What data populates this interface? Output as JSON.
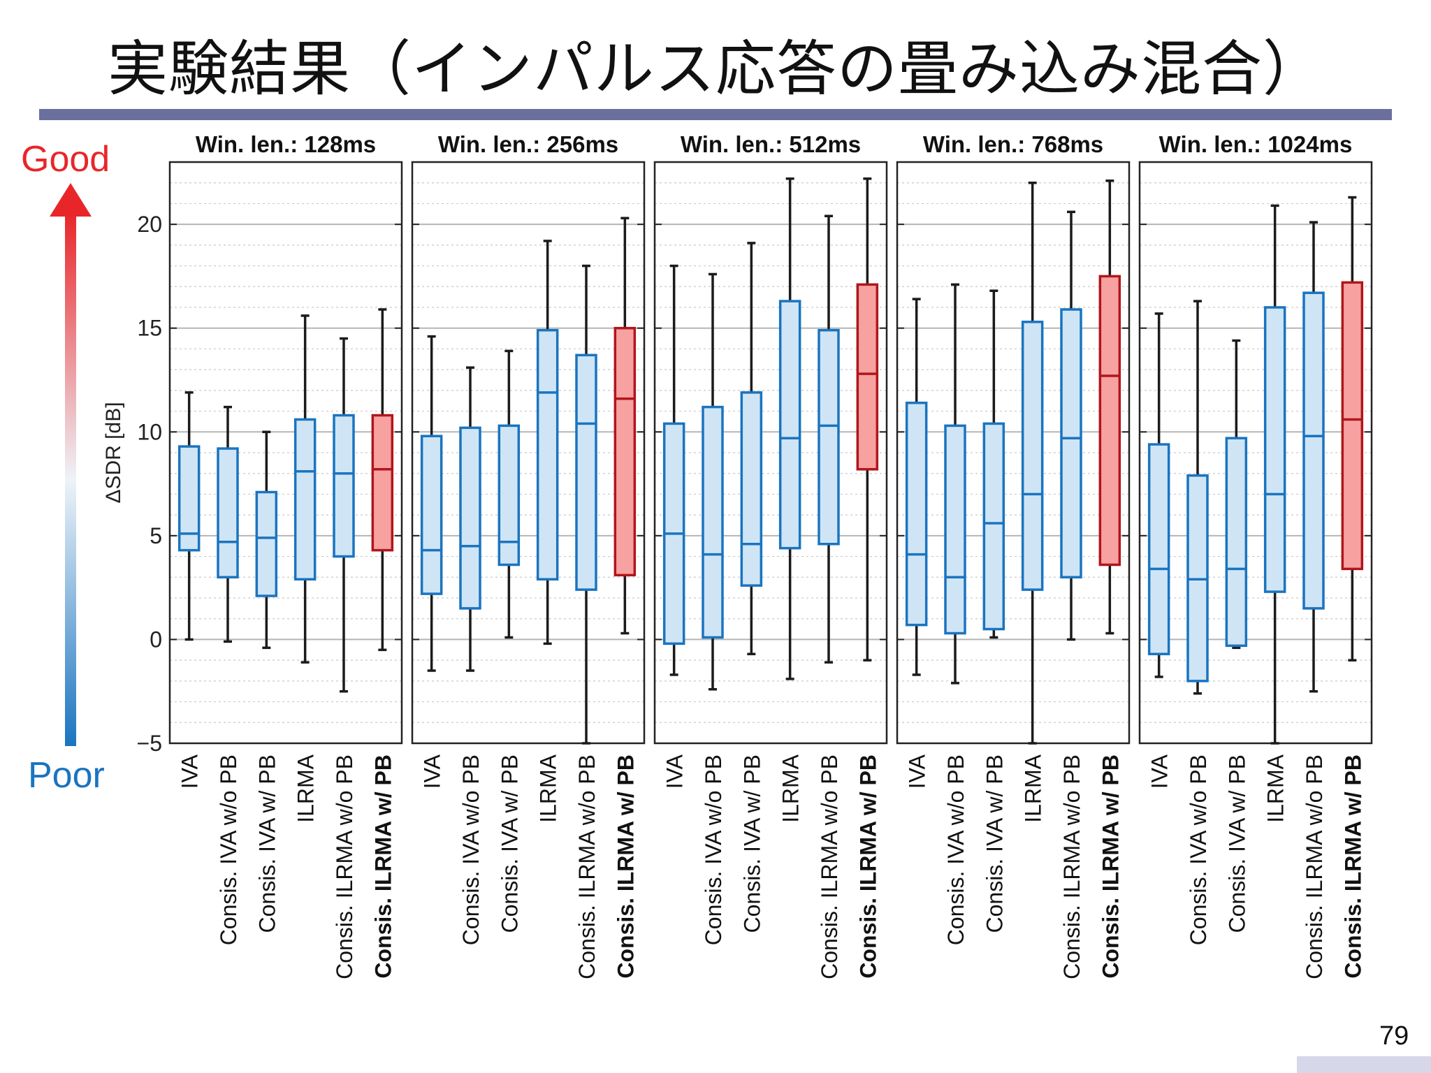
{
  "slide": {
    "title": "実験結果（インパルス応答の畳み込み混合）",
    "good_label": "Good",
    "poor_label": "Poor",
    "page_number": "79"
  },
  "colors": {
    "title_rule": "#6b6f9e",
    "baseline_box_fill": "#cfe5f5",
    "baseline_box_edge": "#1a74c0",
    "proposed_box_fill": "#f7a1a1",
    "proposed_box_edge": "#b0161b",
    "good": "#e8262a",
    "poor": "#1a74c0"
  },
  "chart_data": {
    "type": "box",
    "ylabel": "ΔSDR [dB]",
    "ylim": [
      -5,
      23
    ],
    "yticks": [
      -5,
      0,
      5,
      10,
      15,
      20
    ],
    "grid": true,
    "categories": [
      "IVA",
      "Consis. IVA w/o PB",
      "Consis. IVA w/ PB",
      "ILRMA",
      "Consis. ILRMA w/o PB",
      "Consis. ILRMA w/ PB"
    ],
    "highlight_category": "Consis. ILRMA w/ PB",
    "panels": [
      {
        "title": "Win. len.: 128ms",
        "boxes": [
          {
            "min": 0.0,
            "q1": 4.3,
            "median": 5.1,
            "q3": 9.3,
            "max": 11.9
          },
          {
            "min": -0.1,
            "q1": 3.0,
            "median": 4.7,
            "q3": 9.2,
            "max": 11.2
          },
          {
            "min": -0.4,
            "q1": 2.1,
            "median": 4.9,
            "q3": 7.1,
            "max": 10.0
          },
          {
            "min": -1.1,
            "q1": 2.9,
            "median": 8.1,
            "q3": 10.6,
            "max": 15.6
          },
          {
            "min": -2.5,
            "q1": 4.0,
            "median": 8.0,
            "q3": 10.8,
            "max": 14.5
          },
          {
            "min": -0.5,
            "q1": 4.3,
            "median": 8.2,
            "q3": 10.8,
            "max": 15.9
          }
        ]
      },
      {
        "title": "Win. len.: 256ms",
        "boxes": [
          {
            "min": -1.5,
            "q1": 2.2,
            "median": 4.3,
            "q3": 9.8,
            "max": 14.6
          },
          {
            "min": -1.5,
            "q1": 1.5,
            "median": 4.5,
            "q3": 10.2,
            "max": 13.1
          },
          {
            "min": 0.1,
            "q1": 3.6,
            "median": 4.7,
            "q3": 10.3,
            "max": 13.9
          },
          {
            "min": -0.2,
            "q1": 2.9,
            "median": 11.9,
            "q3": 14.9,
            "max": 19.2
          },
          {
            "min": -5.0,
            "q1": 2.4,
            "median": 10.4,
            "q3": 13.7,
            "max": 18.0
          },
          {
            "min": 0.3,
            "q1": 3.1,
            "median": 11.6,
            "q3": 15.0,
            "max": 20.3
          }
        ]
      },
      {
        "title": "Win. len.: 512ms",
        "boxes": [
          {
            "min": -1.7,
            "q1": -0.2,
            "median": 5.1,
            "q3": 10.4,
            "max": 18.0
          },
          {
            "min": -2.4,
            "q1": 0.1,
            "median": 4.1,
            "q3": 11.2,
            "max": 17.6
          },
          {
            "min": -0.7,
            "q1": 2.6,
            "median": 4.6,
            "q3": 11.9,
            "max": 19.1
          },
          {
            "min": -1.9,
            "q1": 4.4,
            "median": 9.7,
            "q3": 16.3,
            "max": 22.2
          },
          {
            "min": -1.1,
            "q1": 4.6,
            "median": 10.3,
            "q3": 14.9,
            "max": 20.4
          },
          {
            "min": -1.0,
            "q1": 8.2,
            "median": 12.8,
            "q3": 17.1,
            "max": 22.2
          }
        ]
      },
      {
        "title": "Win. len.: 768ms",
        "boxes": [
          {
            "min": -1.7,
            "q1": 0.7,
            "median": 4.1,
            "q3": 11.4,
            "max": 16.4
          },
          {
            "min": -2.1,
            "q1": 0.3,
            "median": 3.0,
            "q3": 10.3,
            "max": 17.1
          },
          {
            "min": 0.1,
            "q1": 0.5,
            "median": 5.6,
            "q3": 10.4,
            "max": 16.8
          },
          {
            "min": -5.0,
            "q1": 2.4,
            "median": 7.0,
            "q3": 15.3,
            "max": 22.0
          },
          {
            "min": 0.0,
            "q1": 3.0,
            "median": 9.7,
            "q3": 15.9,
            "max": 20.6
          },
          {
            "min": 0.3,
            "q1": 3.6,
            "median": 12.7,
            "q3": 17.5,
            "max": 22.1
          }
        ]
      },
      {
        "title": "Win. len.: 1024ms",
        "boxes": [
          {
            "min": -1.8,
            "q1": -0.7,
            "median": 3.4,
            "q3": 9.4,
            "max": 15.7
          },
          {
            "min": -2.6,
            "q1": -2.0,
            "median": 2.9,
            "q3": 7.9,
            "max": 16.3
          },
          {
            "min": -0.4,
            "q1": -0.3,
            "median": 3.4,
            "q3": 9.7,
            "max": 14.4
          },
          {
            "min": -5.0,
            "q1": 2.3,
            "median": 7.0,
            "q3": 16.0,
            "max": 20.9
          },
          {
            "min": -2.5,
            "q1": 1.5,
            "median": 9.8,
            "q3": 16.7,
            "max": 20.1
          },
          {
            "min": -1.0,
            "q1": 3.4,
            "median": 10.6,
            "q3": 17.2,
            "max": 21.3
          }
        ]
      }
    ]
  }
}
